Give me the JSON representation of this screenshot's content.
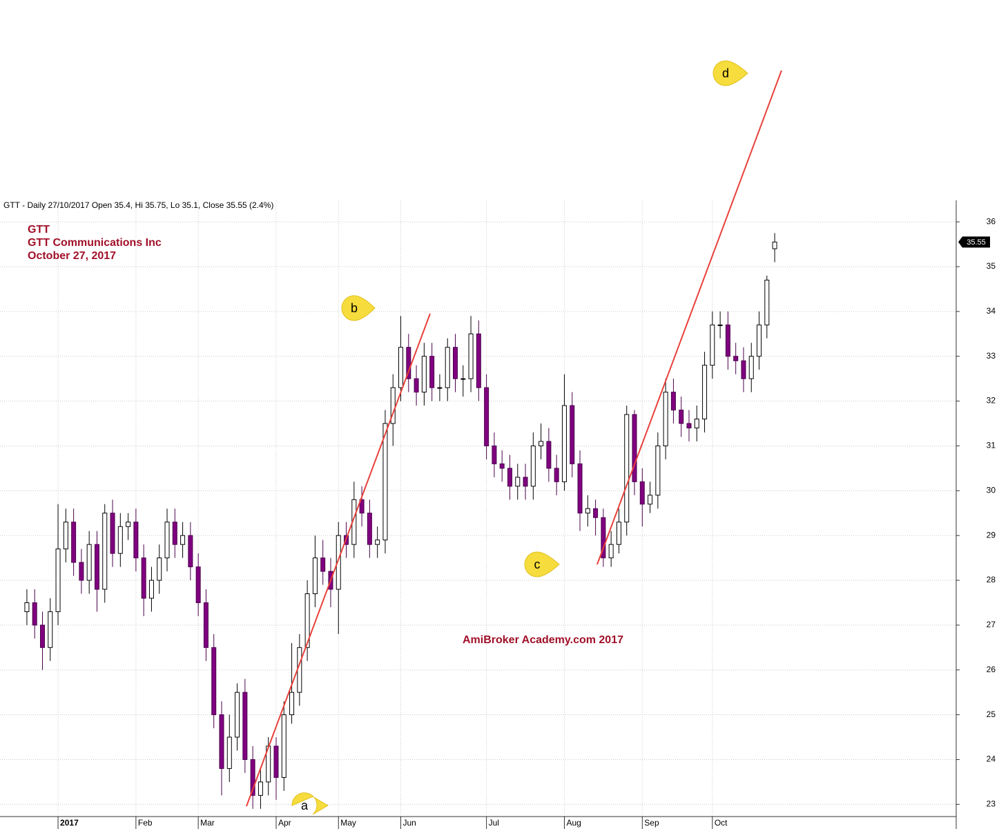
{
  "chart_data": {
    "type": "candlestick",
    "header": "GTT - Daily 27/10/2017 Open 35.4, Hi 35.75, Lo 35.1, Close 35.55 (2.4%)",
    "title": "GTT",
    "subtitle": "GTT Communications Inc",
    "date": "October 27, 2017",
    "watermark": "AmiBroker Academy.com  2017",
    "annotations": [
      "a",
      "b",
      "c",
      "d"
    ],
    "last_price": 35.55,
    "up_color": "#ffffff",
    "down_color": "#800080",
    "grid": true,
    "xlim": [
      -3.45,
      119.3
    ],
    "xticks": [
      {
        "value": 4,
        "label": "2017"
      },
      {
        "value": 14,
        "label": "Feb"
      },
      {
        "value": 22,
        "label": "Mar"
      },
      {
        "value": 32,
        "label": "Apr"
      },
      {
        "value": 40,
        "label": "May"
      },
      {
        "value": 48,
        "label": "Jun"
      },
      {
        "value": 59,
        "label": "Jul"
      },
      {
        "value": 69,
        "label": "Aug"
      },
      {
        "value": 79,
        "label": "Sep"
      },
      {
        "value": 88,
        "label": "Oct"
      }
    ],
    "ylim": [
      22.45,
      36.48
    ],
    "yticks": [
      23,
      24,
      25,
      26,
      27,
      28,
      29,
      30,
      31,
      32,
      33,
      34,
      35,
      36
    ],
    "open": [
      27.3,
      27.5,
      27,
      26.5,
      27.3,
      28.7,
      29.3,
      28.4,
      28,
      28.8,
      27.8,
      29.5,
      28.6,
      29.2,
      29.3,
      28.5,
      27.6,
      28,
      28.5,
      29.3,
      28.8,
      29,
      28.3,
      27.5,
      26.5,
      25,
      23.8,
      24.5,
      25.5,
      24,
      23.2,
      23.5,
      24.3,
      23.6,
      25,
      25.5,
      26.5,
      27.7,
      28.5,
      28.2,
      27.8,
      29,
      28.8,
      29.8,
      29.5,
      28.8,
      28.9,
      31.5,
      32.3,
      33.2,
      32.5,
      32.2,
      33,
      32.3,
      32.3,
      33.2,
      32.5,
      32.5,
      33.5,
      32.3,
      31,
      30.6,
      30.5,
      30.1,
      30.3,
      30.1,
      31,
      31.1,
      30.5,
      30.2,
      31.9,
      30.6,
      29.5,
      29.6,
      29.4,
      28.5,
      28.8,
      29.3,
      31.7,
      30.2,
      29.7,
      29.9,
      31,
      32.2,
      31.8,
      31.5,
      31.4,
      31.6,
      32.8,
      33.7,
      33.7,
      33,
      32.9,
      32.5,
      33,
      33.7,
      35.4
    ],
    "high": [
      27.8,
      27.8,
      27.3,
      27.6,
      29.7,
      29.6,
      29.6,
      28.7,
      29.1,
      29.1,
      29.7,
      29.8,
      29.5,
      29.5,
      29.6,
      28.8,
      28.3,
      28.8,
      29.6,
      29.6,
      29.3,
      29.3,
      28.6,
      27.8,
      26.8,
      25.3,
      25,
      25.7,
      25.8,
      24.3,
      23.8,
      24.5,
      24.5,
      25.3,
      26.6,
      26.8,
      28,
      29,
      28.9,
      28.5,
      29.3,
      29.3,
      30.2,
      30.1,
      29.8,
      29.2,
      31.8,
      32.6,
      33.9,
      33.5,
      32.8,
      33.3,
      33.3,
      32.6,
      33.4,
      33.5,
      32.8,
      33.9,
      33.8,
      32.6,
      31.3,
      30.9,
      30.8,
      30.6,
      30.6,
      31.3,
      31.5,
      31.4,
      30.8,
      32.6,
      32.2,
      30.9,
      29.9,
      29.8,
      29.6,
      29.1,
      29.6,
      31.9,
      31.8,
      30.5,
      30.2,
      31.3,
      32.5,
      32.5,
      32.1,
      31.8,
      31.9,
      33.1,
      34,
      34,
      34,
      33.3,
      33.2,
      33.3,
      34,
      34.8,
      35.75
    ],
    "low": [
      27,
      26.7,
      26,
      26.2,
      27,
      28.4,
      28.1,
      27.7,
      27.7,
      27.3,
      27.5,
      28.3,
      28.3,
      28.9,
      28.2,
      27.2,
      27.3,
      27.7,
      28.2,
      28.5,
      28.5,
      28,
      27.2,
      26.2,
      24.7,
      23.2,
      23.5,
      24.2,
      23.7,
      22.9,
      22.9,
      23.2,
      23.1,
      23.3,
      24.8,
      25.2,
      26.2,
      27.4,
      27.9,
      27.4,
      26.8,
      28.5,
      28.5,
      29.2,
      28.5,
      28.5,
      28.6,
      31,
      32,
      32.2,
      31.9,
      31.9,
      32,
      32,
      32,
      32.2,
      32.1,
      32.2,
      32,
      30.7,
      30.3,
      30.2,
      29.8,
      29.8,
      29.8,
      29.8,
      30.7,
      30.2,
      29.9,
      30,
      30.3,
      29.1,
      29.2,
      29,
      28.3,
      28.3,
      28.6,
      29,
      29.9,
      29.2,
      29.5,
      29.6,
      30.7,
      31.5,
      31.2,
      31.1,
      31.1,
      31.3,
      32.5,
      33.4,
      32.7,
      32.6,
      32.2,
      32.2,
      32.7,
      33.4,
      35.1
    ],
    "close": [
      27.5,
      27,
      26.5,
      27.3,
      28.7,
      29.3,
      28.4,
      28,
      28.8,
      27.8,
      29.5,
      28.6,
      29.2,
      29.3,
      28.5,
      27.6,
      28,
      28.5,
      29.3,
      28.8,
      29,
      28.3,
      27.5,
      26.5,
      25,
      23.8,
      24.5,
      25.5,
      24,
      23.2,
      23.5,
      24.3,
      23.6,
      25,
      25.5,
      26.5,
      27.7,
      28.5,
      28.2,
      27.8,
      29,
      28.8,
      29.8,
      29.5,
      28.8,
      28.9,
      31.5,
      32.3,
      33.2,
      32.5,
      32.2,
      33,
      32.3,
      32.3,
      33.2,
      32.5,
      32.5,
      33.5,
      32.3,
      31,
      30.6,
      30.5,
      30.1,
      30.3,
      30.1,
      31,
      31.1,
      30.5,
      30.2,
      31.9,
      30.6,
      29.5,
      29.6,
      29.4,
      28.5,
      28.8,
      29.3,
      31.7,
      30.2,
      29.7,
      29.9,
      31,
      32.2,
      31.8,
      31.5,
      31.4,
      31.6,
      32.8,
      33.7,
      33.7,
      33,
      32.9,
      32.5,
      33,
      33.7,
      34.7,
      35.55
    ]
  }
}
